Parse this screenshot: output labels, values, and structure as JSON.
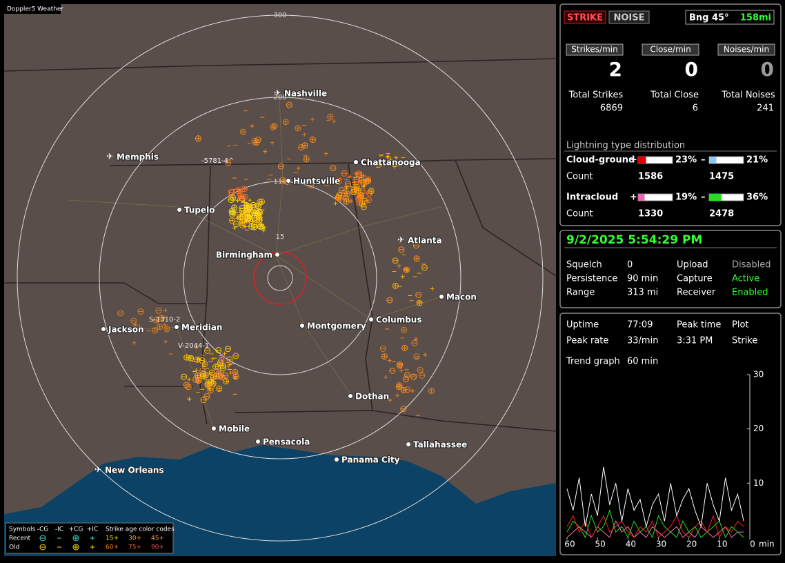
{
  "map": {
    "title": "Doppler5 Weather",
    "rings": [
      "15",
      "110",
      "205",
      "300"
    ],
    "cities": [
      {
        "label": "Nashville",
        "airport": true
      },
      {
        "label": "Memphis",
        "airport": true
      },
      {
        "label": "Chattanooga",
        "airport": false
      },
      {
        "label": "Huntsville",
        "airport": false
      },
      {
        "label": "Tupelo",
        "airport": false
      },
      {
        "label": "Birmingham",
        "airport": false
      },
      {
        "label": "Atlanta",
        "airport": true
      },
      {
        "label": "Macon",
        "airport": false
      },
      {
        "label": "Jackson",
        "airport": false
      },
      {
        "label": "Meridian",
        "airport": false
      },
      {
        "label": "Montgomery",
        "airport": false
      },
      {
        "label": "Columbus",
        "airport": false
      },
      {
        "label": "Dothan",
        "airport": false
      },
      {
        "label": "Mobile",
        "airport": false
      },
      {
        "label": "Pensacola",
        "airport": false
      },
      {
        "label": "Tallahassee",
        "airport": false
      },
      {
        "label": "Panama City",
        "airport": false
      },
      {
        "label": "New Orleans",
        "airport": true
      }
    ],
    "cell_labels": [
      "-5781-4^",
      "S-1310-2",
      "V-2044-1"
    ],
    "legend": {
      "symbols": "Symbols",
      "types": [
        "-CG",
        "-IC",
        "+CG",
        "+IC"
      ],
      "age_title": "Strike age color codes",
      "rows": [
        {
          "label": "Recent",
          "ages": [
            "15+",
            "30+",
            "45+"
          ]
        },
        {
          "label": "Old",
          "ages": [
            "60+",
            "75+",
            "90+"
          ]
        }
      ]
    }
  },
  "panel": {
    "buttons": [
      "STRIKE",
      "NOISE"
    ],
    "bearing": "Bng 45°",
    "distance": "158mi",
    "rates": [
      {
        "label": "Strikes/min",
        "value": 2
      },
      {
        "label": "Close/min",
        "value": 0
      },
      {
        "label": "Noises/min",
        "value": 0
      }
    ],
    "totals": [
      {
        "label": "Total Strikes",
        "value": 6869
      },
      {
        "label": "Total Close",
        "value": 6
      },
      {
        "label": "Total Noises",
        "value": 241
      }
    ],
    "distribution": {
      "title": "Lightning type distribution",
      "count_label": "Count",
      "rows": [
        {
          "label": "Cloud-ground",
          "pos": {
            "sign": "+",
            "pct": 23,
            "pct_label": "23%",
            "count": 1586,
            "color": "#e00000"
          },
          "neg": {
            "sign": "–",
            "pct": 21,
            "pct_label": "21%",
            "count": 1475,
            "color": "#8ec8f0"
          }
        },
        {
          "label": "Intracloud",
          "pos": {
            "sign": "+",
            "pct": 19,
            "pct_label": "19%",
            "count": 1330,
            "color": "#e868b0"
          },
          "neg": {
            "sign": "–",
            "pct": 36,
            "pct_label": "36%",
            "count": 2478,
            "color": "#20e020"
          }
        }
      ]
    },
    "datetime": "9/2/2025 5:54:29 PM",
    "status": [
      [
        "Squelch",
        "0",
        "Upload",
        "Disabled"
      ],
      [
        "Persistence",
        "90 min",
        "Capture",
        "Active"
      ],
      [
        "Range",
        "313 mi",
        "Receiver",
        "Enabled"
      ]
    ],
    "stats": [
      [
        "Uptime",
        "77:09",
        "Peak time",
        "Plot"
      ],
      [
        "Peak rate",
        "33/min",
        "3:31 PM",
        "Strike"
      ]
    ],
    "trend_label": [
      "Trend graph",
      "60 min"
    ]
  },
  "trend_chart": {
    "type": "line",
    "xlim": [
      60,
      0
    ],
    "xticks": [
      60,
      50,
      40,
      30,
      20,
      10,
      0
    ],
    "xlabel": "min",
    "ylim": [
      0,
      30
    ],
    "yticks": [
      10,
      20,
      30
    ],
    "x": [
      60,
      58,
      56,
      54,
      52,
      50,
      48,
      46,
      44,
      42,
      40,
      38,
      36,
      34,
      32,
      30,
      28,
      26,
      24,
      22,
      20,
      18,
      16,
      14,
      12,
      10,
      8,
      6,
      4,
      2
    ],
    "series": [
      {
        "color": "#ffffff",
        "values": [
          9,
          5,
          11,
          2,
          8,
          4,
          13,
          6,
          10,
          3,
          9,
          5,
          7,
          2,
          6,
          8,
          3,
          10,
          4,
          7,
          9,
          5,
          2,
          10,
          6,
          3,
          11,
          5,
          8,
          3
        ]
      },
      {
        "color": "#ff2020",
        "values": [
          2,
          4,
          1,
          3,
          0,
          2,
          4,
          1,
          2,
          3,
          1,
          0,
          2,
          1,
          3,
          0,
          1,
          2,
          4,
          1,
          0,
          2,
          3,
          1,
          4,
          0,
          2,
          1,
          3,
          2
        ]
      },
      {
        "color": "#20e020",
        "values": [
          1,
          3,
          2,
          0,
          4,
          1,
          2,
          5,
          1,
          2,
          0,
          3,
          1,
          2,
          0,
          4,
          2,
          1,
          0,
          3,
          1,
          2,
          0,
          1,
          2,
          3,
          0,
          2,
          1,
          0
        ]
      },
      {
        "color": "#ff70c0",
        "values": [
          0,
          1,
          2,
          1,
          0,
          2,
          1,
          0,
          3,
          1,
          2,
          0,
          1,
          0,
          2,
          1,
          0,
          1,
          2,
          0,
          1,
          0,
          2,
          1,
          0,
          1,
          2,
          0,
          1,
          1
        ]
      }
    ]
  }
}
